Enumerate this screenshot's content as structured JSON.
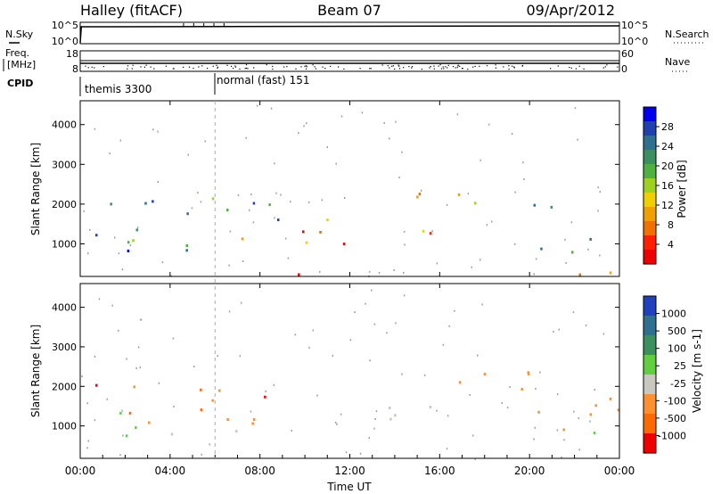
{
  "header": {
    "radar": "Halley (fitACF)",
    "beam": "Beam 07",
    "date": "09/Apr/2012"
  },
  "panels": {
    "nsky_label": "N.Sky",
    "nsearch_label": "N.Search",
    "freq_label_line1": "Freq.",
    "freq_label_line2": "[MHz]",
    "nave_label": "Nave",
    "cpid_label": "CPID",
    "nsky_ticks": [
      "10^5",
      "10^0"
    ],
    "nsearch_ticks": [
      "10^5",
      "10^0"
    ],
    "freq_ticks": [
      "18",
      "8"
    ],
    "nave_ticks": [
      "60",
      "0"
    ],
    "cpid_segments": [
      {
        "start_hour": 0.0,
        "end_hour": 6.0,
        "label": "themis 3300"
      },
      {
        "start_hour": 6.0,
        "end_hour": 24.0,
        "label": "normal (fast) 151"
      }
    ]
  },
  "chart_data": [
    {
      "type": "heatmap",
      "name": "power",
      "ylabel": "Slant Range [km]",
      "xlabel": "Time UT",
      "xlim": [
        0,
        24
      ],
      "ylim": [
        180,
        4600
      ],
      "y_ticks": [
        1000,
        2000,
        3000,
        4000
      ],
      "x_ticks": [
        "00:00",
        "04:00",
        "08:00",
        "12:00",
        "16:00",
        "20:00",
        "00:00"
      ],
      "colorbar_label": "Power [dB]",
      "colorbar_ticks": [
        "28",
        "24",
        "20",
        "16",
        "12",
        "8",
        "4"
      ],
      "colorbar_colors": [
        "#0000ee",
        "#2040b0",
        "#2f6f8f",
        "#3c8f5f",
        "#4fb13f",
        "#a0d020",
        "#f0d000",
        "#f0a000",
        "#f07000",
        "#ff2000",
        "#ee0000"
      ],
      "echo_regions": [
        {
          "t0": 0.3,
          "t1": 9.2,
          "r0": 900,
          "r1": 2300,
          "level": 0.7
        },
        {
          "t0": 1.5,
          "t1": 6.5,
          "r0": 650,
          "r1": 1000,
          "level": 0.9
        },
        {
          "t0": 6.0,
          "t1": 11.0,
          "r0": 1000,
          "r1": 1800,
          "level": 0.25
        },
        {
          "t0": 10.5,
          "t1": 17.0,
          "r0": 2000,
          "r1": 2400,
          "level": 0.35
        },
        {
          "t0": 10.0,
          "t1": 16.5,
          "r0": 1000,
          "r1": 1600,
          "level": 0.2
        },
        {
          "t0": 17.0,
          "t1": 21.0,
          "r0": 1500,
          "r1": 2200,
          "level": 0.6
        },
        {
          "t0": 20.0,
          "t1": 24.0,
          "r0": 800,
          "r1": 1500,
          "level": 0.55
        },
        {
          "t0": 0.0,
          "t1": 24.0,
          "r0": 200,
          "r1": 330,
          "level": 0.15
        }
      ]
    },
    {
      "type": "heatmap",
      "name": "velocity",
      "ylabel": "Slant Range [km]",
      "xlabel": "Time UT",
      "xlim": [
        0,
        24
      ],
      "ylim": [
        180,
        4600
      ],
      "y_ticks": [
        1000,
        2000,
        3000,
        4000
      ],
      "x_ticks": [
        "00:00",
        "04:00",
        "08:00",
        "12:00",
        "16:00",
        "20:00",
        "00:00"
      ],
      "colorbar_label": "Velocity [m s-1]",
      "colorbar_ticks": [
        "1000",
        "500",
        "100",
        "25",
        "-25",
        "-100",
        "-500",
        "-1000"
      ],
      "colorbar_colors": [
        "#2040c0",
        "#2f6f8f",
        "#3c8f5f",
        "#5fcf3f",
        "#c8c8c0",
        "#ff9030",
        "#ff6a00",
        "#ee0000"
      ],
      "echo_regions": [
        {
          "t0": 0.5,
          "t1": 9.0,
          "r0": 900,
          "r1": 2200,
          "class": "orange"
        },
        {
          "t0": 0.8,
          "t1": 4.5,
          "r0": 700,
          "r1": 1400,
          "class": "green"
        },
        {
          "t0": 4.0,
          "t1": 7.5,
          "r0": 700,
          "r1": 1100,
          "class": "grey"
        },
        {
          "t0": 10.5,
          "t1": 20.0,
          "r0": 1900,
          "r1": 2400,
          "class": "orange"
        },
        {
          "t0": 12.0,
          "t1": 17.0,
          "r0": 1000,
          "r1": 1700,
          "class": "grey"
        },
        {
          "t0": 19.0,
          "t1": 24.0,
          "r0": 800,
          "r1": 1800,
          "class": "orange"
        },
        {
          "t0": 22.0,
          "t1": 24.0,
          "r0": 800,
          "r1": 1400,
          "class": "green"
        }
      ]
    }
  ]
}
